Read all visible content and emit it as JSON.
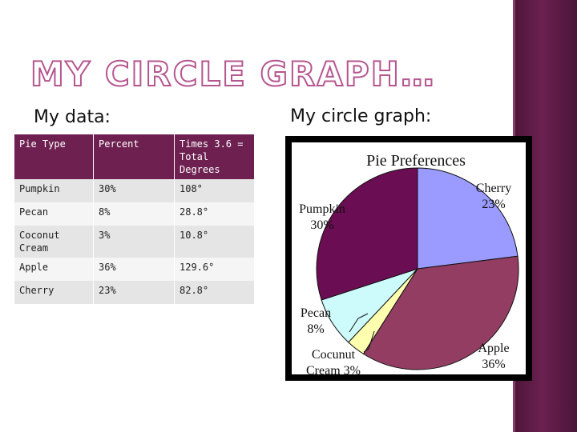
{
  "slide": {
    "title": "MY CIRCLE GRAPH…",
    "data_heading": "My data:",
    "graph_heading": "My circle graph:"
  },
  "table": {
    "headers": [
      "Pie Type",
      "Percent",
      "Times 3.6 = Total Degrees"
    ],
    "rows": [
      [
        "Pumpkin",
        "30%",
        "108°"
      ],
      [
        "Pecan",
        "8%",
        "28.8°"
      ],
      [
        "Coconut Cream",
        "3%",
        "10.8°"
      ],
      [
        "Apple",
        "36%",
        "129.6°"
      ],
      [
        "Cherry",
        "23%",
        "82.8°"
      ]
    ]
  },
  "colors": {
    "accent": "#6e2151",
    "title_outline": "#b5568f",
    "side_band": "#5a1a44"
  },
  "chart_data": {
    "type": "pie",
    "title": "Pie Preferences",
    "slices": [
      {
        "name": "Cherry",
        "value": 23,
        "label": "23%",
        "color": "#9b9bff"
      },
      {
        "name": "Apple",
        "value": 36,
        "label": "36%",
        "color": "#933d63"
      },
      {
        "name": "Coconut Cream",
        "value": 3,
        "label": "3%",
        "color": "#ffffb0"
      },
      {
        "name": "Pecan",
        "value": 8,
        "label": "8%",
        "color": "#cdfbfb"
      },
      {
        "name": "Pumpkin",
        "value": 30,
        "label": "30%",
        "color": "#6b0d52"
      }
    ],
    "slice_labels": [
      {
        "lines": [
          "Cherry",
          "23%"
        ]
      },
      {
        "lines": [
          "Apple",
          "36%"
        ]
      },
      {
        "lines": [
          "Cocunut",
          "Cream 3%"
        ]
      },
      {
        "lines": [
          "Pecan",
          "8%"
        ]
      },
      {
        "lines": [
          "Pumpkin",
          "30%"
        ]
      }
    ]
  }
}
